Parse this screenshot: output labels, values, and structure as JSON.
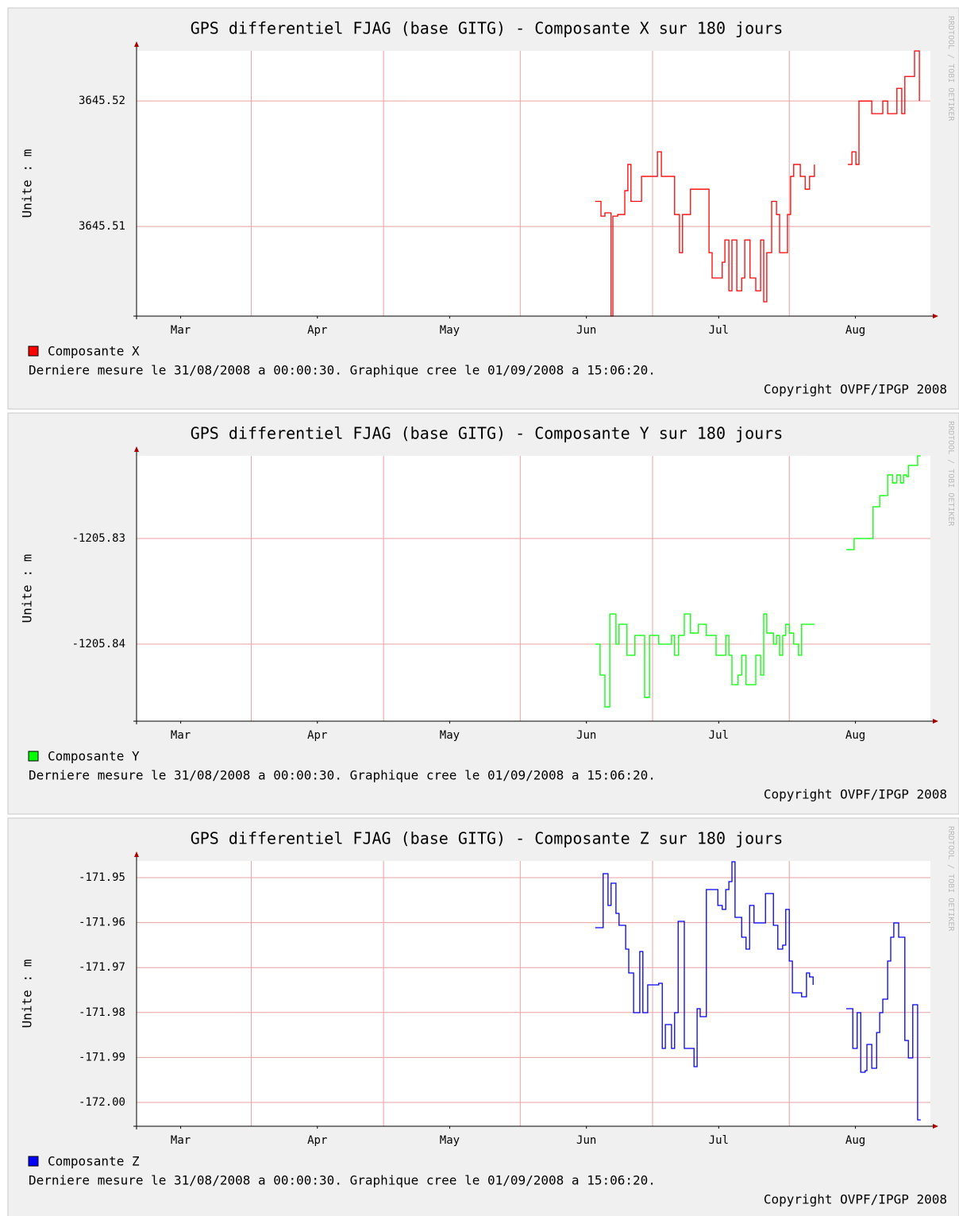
{
  "chart_data": [
    {
      "type": "line",
      "step": true,
      "title": "GPS differentiel FJAG (base GITG) - Composante X sur 180 jours",
      "ylabel": "Unite : m",
      "footer": "Derniere mesure le 31/08/2008 a 00:00:30. Graphique cree le 01/09/2008 a 15:06:20.",
      "copyright": "Copyright OVPF/IPGP 2008",
      "watermark": "RRDTOOL / TOBI OETIKER",
      "xlim": [
        0,
        180
      ],
      "xgrid": [
        26,
        56,
        87,
        117,
        148
      ],
      "xticks": [
        {
          "value": 10,
          "label": "Mar"
        },
        {
          "value": 41,
          "label": "Apr"
        },
        {
          "value": 71,
          "label": "May"
        },
        {
          "value": 102,
          "label": "Jun"
        },
        {
          "value": 132,
          "label": "Jul"
        },
        {
          "value": 163,
          "label": "Aug"
        }
      ],
      "ylim": [
        3645.50285,
        3645.524
      ],
      "yticks": [
        3645.51,
        3645.52
      ],
      "grid": true,
      "x": [
        104.0,
        105.3,
        106.2,
        106.9,
        107.6,
        108.0,
        109.1,
        110.0,
        110.7,
        111.4,
        112.1,
        113.9,
        114.5,
        116.6,
        118.1,
        119.0,
        121.1,
        122.0,
        123.1,
        123.8,
        125.6,
        128.9,
        129.8,
        130.5,
        131.9,
        132.8,
        133.4,
        134.3,
        135.0,
        136.1,
        137.2,
        137.9,
        139.1,
        140.4,
        141.5,
        142.2,
        142.9,
        144.0,
        145.1,
        145.8,
        146.9,
        147.6,
        148.3,
        149.0,
        150.5,
        151.6,
        152.6,
        153.7,
        157,
        161.3,
        162.2,
        163.1,
        163.8,
        166.3,
        166.7,
        168.5,
        169.2,
        170.3,
        171.7,
        172.4,
        173.5,
        174.2,
        176.0,
        176.4,
        177.1,
        177.5
      ],
      "series": [
        {
          "name": "Composante X",
          "color": "#ff0000",
          "values": [
            3645.512,
            3645.51082,
            3645.51108,
            3645.51108,
            3645.50285,
            3645.51082,
            3645.51095,
            3645.51095,
            3645.51285,
            3645.51494,
            3645.512,
            3645.512,
            3645.51399,
            3645.51399,
            3645.51595,
            3645.51399,
            3645.51399,
            3645.51095,
            3645.50791,
            3645.51095,
            3645.51297,
            3645.51297,
            3645.50791,
            3645.50589,
            3645.50589,
            3645.50715,
            3645.50892,
            3645.50487,
            3645.50892,
            3645.50487,
            3645.50589,
            3645.50892,
            3645.50589,
            3645.50487,
            3645.50892,
            3645.50399,
            3645.50791,
            3645.512,
            3645.51095,
            3645.50791,
            3645.50791,
            3645.51095,
            3645.51399,
            3645.51494,
            3645.51399,
            3645.51297,
            3645.51399,
            3645.51494,
            null,
            3645.51494,
            3645.51595,
            3645.51494,
            3645.52,
            3645.52,
            3645.51899,
            3645.51899,
            3645.52,
            3645.51899,
            3645.51899,
            3645.52101,
            3645.51899,
            3645.52196,
            3645.52196,
            3645.52399,
            3645.52399,
            3645.52
          ]
        }
      ]
    },
    {
      "type": "line",
      "step": true,
      "title": "GPS differentiel FJAG (base GITG) - Composante Y sur 180 jours",
      "ylabel": "Unite : m",
      "footer": "Derniere mesure le 31/08/2008 a 00:00:30. Graphique cree le 01/09/2008 a 15:06:20.",
      "copyright": "Copyright OVPF/IPGP 2008",
      "watermark": "RRDTOOL / TOBI OETIKER",
      "xlim": [
        0,
        180
      ],
      "xgrid": [
        26,
        56,
        87,
        117,
        148
      ],
      "xticks": [
        {
          "value": 10,
          "label": "Mar"
        },
        {
          "value": 41,
          "label": "Apr"
        },
        {
          "value": 71,
          "label": "May"
        },
        {
          "value": 102,
          "label": "Jun"
        },
        {
          "value": 132,
          "label": "Jul"
        },
        {
          "value": 163,
          "label": "Aug"
        }
      ],
      "ylim": [
        -1205.84729,
        -1205.82218
      ],
      "yticks": [
        -1205.84,
        -1205.83
      ],
      "grid": true,
      "x": [
        104.0,
        105.1,
        105.8,
        106.2,
        106.9,
        107.3,
        108.0,
        108.7,
        109.4,
        110.3,
        111.2,
        112.7,
        113.0,
        114.5,
        115.2,
        115.9,
        116.3,
        117.7,
        118.4,
        121.3,
        122.0,
        122.9,
        123.8,
        124.2,
        124.9,
        125.6,
        126.7,
        127.4,
        128.9,
        129.2,
        130.7,
        131.4,
        132.8,
        133.6,
        134.3,
        135.0,
        135.7,
        136.4,
        137.2,
        137.9,
        138.2,
        139.7,
        140.4,
        141.5,
        142.2,
        142.9,
        143.6,
        144.4,
        145.1,
        145.8,
        146.5,
        147.2,
        148.0,
        149.0,
        150.1,
        150.8,
        153.7,
        157,
        160.9,
        162.4,
        162.7,
        166.7,
        167.0,
        168.1,
        168.5,
        169.9,
        170.3,
        171.0,
        171.4,
        172.4,
        173.2,
        173.9,
        174.6,
        175.0,
        176.8,
        177.1,
        177.8
      ],
      "series": [
        {
          "name": "Composante Y",
          "color": "#00ff00",
          "values": [
            -1205.84,
            -1205.84293,
            -1205.84293,
            -1205.84594,
            -1205.84594,
            -1205.83714,
            -1205.83714,
            -1205.84,
            -1205.83812,
            -1205.83812,
            -1205.84105,
            -1205.84105,
            -1205.83917,
            -1205.83917,
            -1205.84504,
            -1205.84504,
            -1205.83917,
            -1205.83917,
            -1205.84,
            -1205.83917,
            -1205.84105,
            -1205.83917,
            -1205.83917,
            -1205.83714,
            -1205.83714,
            -1205.83895,
            -1205.83895,
            -1205.83812,
            -1205.83812,
            -1205.83917,
            -1205.83917,
            -1205.84105,
            -1205.84105,
            -1205.83917,
            -1205.84105,
            -1205.84383,
            -1205.84383,
            -1205.84293,
            -1205.84105,
            -1205.84105,
            -1205.84383,
            -1205.84383,
            -1205.84105,
            -1205.84293,
            -1205.83714,
            -1205.83895,
            -1205.83895,
            -1205.84,
            -1205.83917,
            -1205.84105,
            -1205.83917,
            -1205.83812,
            -1205.83895,
            -1205.84,
            -1205.84105,
            -1205.83812,
            -1205.83812,
            null,
            -1205.83105,
            -1205.83105,
            -1205.83,
            -1205.83,
            -1205.82699,
            -1205.82699,
            -1205.82594,
            -1205.82594,
            -1205.82398,
            -1205.82398,
            -1205.82474,
            -1205.82398,
            -1205.82474,
            -1205.82398,
            -1205.82414,
            -1205.82308,
            -1205.82308,
            -1205.82218,
            -1205.82218
          ]
        }
      ]
    },
    {
      "type": "line",
      "step": true,
      "title": "GPS differentiel FJAG (base GITG) - Composante Z sur 180 jours",
      "ylabel": "Unite : m",
      "footer": "Derniere mesure le 31/08/2008 a 00:00:30. Graphique cree le 01/09/2008 a 15:06:20.",
      "copyright": "Copyright OVPF/IPGP 2008",
      "watermark": "RRDTOOL / TOBI OETIKER",
      "xlim": [
        0,
        180
      ],
      "xgrid": [
        26,
        56,
        87,
        117,
        148
      ],
      "xticks": [
        {
          "value": 10,
          "label": "Mar"
        },
        {
          "value": 41,
          "label": "Apr"
        },
        {
          "value": 71,
          "label": "May"
        },
        {
          "value": 102,
          "label": "Jun"
        },
        {
          "value": 132,
          "label": "Jul"
        },
        {
          "value": 163,
          "label": "Aug"
        }
      ],
      "ylim": [
        -172.0053,
        -171.94629
      ],
      "grid": true,
      "yticks": [
        {
          "value": -172.0,
          "label": "-172.00"
        },
        -171.99,
        -171.98,
        -171.97,
        -171.96,
        -171.95
      ],
      "x": [
        104.0,
        105.1,
        105.8,
        106.6,
        106.9,
        107.6,
        108.7,
        109.4,
        110.9,
        111.6,
        112.7,
        113.8,
        114.1,
        114.8,
        115.9,
        118.4,
        119.2,
        119.9,
        120.6,
        121.3,
        122.0,
        122.8,
        123.5,
        124.2,
        125.6,
        126.4,
        127.1,
        127.8,
        128.9,
        129.2,
        131.0,
        131.8,
        132.8,
        133.6,
        134.3,
        135.0,
        135.7,
        137.2,
        138.2,
        139.0,
        140.0,
        141.8,
        142.6,
        143.6,
        144.4,
        145.4,
        146.5,
        147.2,
        148.0,
        148.7,
        149.8,
        150.8,
        151.9,
        152.6,
        153.4,
        157,
        160.9,
        162.0,
        162.4,
        163.4,
        164.2,
        165.2,
        165.6,
        166.7,
        167.4,
        167.8,
        168.5,
        169.2,
        170.3,
        171.0,
        171.7,
        172.4,
        172.8,
        173.9,
        174.2,
        175.0,
        175.7,
        176.0,
        176.8,
        177.1,
        177.8
      ],
      "series": [
        {
          "name": "Composante Z",
          "color": "#0000ff",
          "values": [
            -171.96113,
            -171.96113,
            -171.94912,
            -171.94912,
            -171.95618,
            -171.95124,
            -171.95795,
            -171.9606,
            -171.9659,
            -171.9712,
            -171.98004,
            -171.98004,
            -171.96643,
            -171.98004,
            -171.97385,
            -171.9735,
            -171.98799,
            -171.98269,
            -171.98269,
            -171.98799,
            -171.98004,
            -171.95972,
            -171.95972,
            -171.98799,
            -171.98799,
            -171.99205,
            -171.97915,
            -171.98092,
            -171.98092,
            -171.95265,
            -171.95265,
            -171.95618,
            -171.95707,
            -171.95265,
            -171.95088,
            -171.94647,
            -171.95883,
            -171.96325,
            -171.9659,
            -171.95618,
            -171.96007,
            -171.96007,
            -171.95353,
            -171.95353,
            -171.9606,
            -171.9659,
            -171.96502,
            -171.95707,
            -171.96855,
            -171.97562,
            -171.97562,
            -171.9765,
            -171.9712,
            -171.97208,
            -171.97385,
            null,
            -171.97915,
            -171.97915,
            -171.98799,
            -171.98004,
            -171.99329,
            -171.99293,
            -171.9871,
            -171.9924,
            -171.9924,
            -171.98445,
            -171.98004,
            -171.97703,
            -171.96855,
            -171.96325,
            -171.96007,
            -171.96007,
            -171.96325,
            -171.96325,
            -171.98622,
            -171.99011,
            -171.99011,
            -171.97827,
            -171.97827,
            -172.00389,
            -172.00389
          ]
        }
      ]
    }
  ]
}
